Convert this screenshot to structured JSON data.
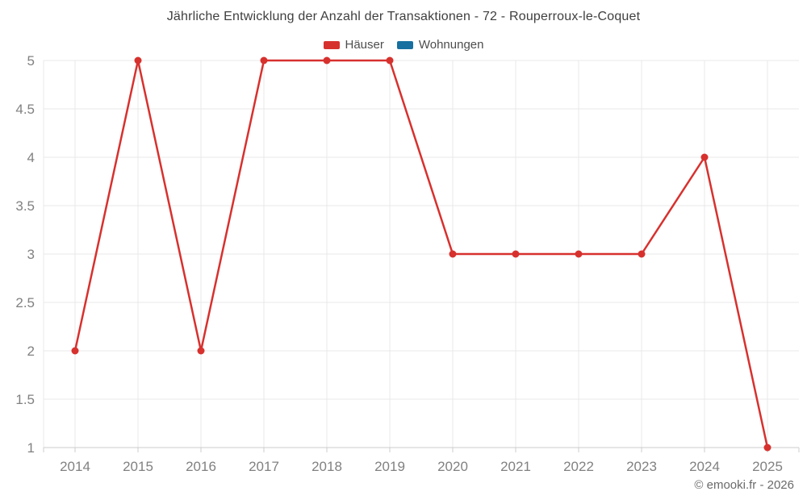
{
  "title": "Jährliche Entwicklung der Anzahl der Transaktionen - 72 - Rouperroux-le-Coquet",
  "legend": [
    {
      "label": "Häuser",
      "color": "#d7312e"
    },
    {
      "label": "Wohnungen",
      "color": "#17709f"
    }
  ],
  "footer": "© emooki.fr - 2026",
  "colors": {
    "grid": "#e9e9e9",
    "axis": "#cccccc",
    "axis_label": "#818181",
    "title_text": "#3f3f3f",
    "legend_text": "#4d4d4d",
    "footer_text": "#6a6a6a",
    "background": "#ffffff"
  },
  "chart_data": {
    "type": "line",
    "title": "Jährliche Entwicklung der Anzahl der Transaktionen - 72 - Rouperroux-le-Coquet",
    "categories": [
      "2014",
      "2015",
      "2016",
      "2017",
      "2018",
      "2019",
      "2020",
      "2021",
      "2022",
      "2023",
      "2024",
      "2025"
    ],
    "series": [
      {
        "name": "Häuser",
        "color": "#d7312e",
        "values": [
          2,
          5,
          2,
          5,
          5,
          5,
          3,
          3,
          3,
          3,
          4,
          1
        ]
      },
      {
        "name": "Wohnungen",
        "color": "#17709f",
        "values": []
      }
    ],
    "xlabel": "",
    "ylabel": "",
    "ylim": [
      1,
      5
    ],
    "ytick_step": 0.5,
    "yticks": [
      "1",
      "1.5",
      "2",
      "2.5",
      "3",
      "3.5",
      "4",
      "4.5",
      "5"
    ],
    "grid": true,
    "legend_position": "top",
    "marker": "circle"
  }
}
